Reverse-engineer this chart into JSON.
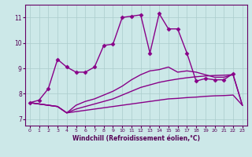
{
  "xlabel": "Windchill (Refroidissement éolien,°C)",
  "bg_color": "#cce8e8",
  "line_color": "#880088",
  "grid_color": "#aacccc",
  "xlim": [
    -0.5,
    23.5
  ],
  "ylim": [
    6.75,
    11.5
  ],
  "yticks": [
    7,
    8,
    9,
    10,
    11
  ],
  "xticks": [
    0,
    1,
    2,
    3,
    4,
    5,
    6,
    7,
    8,
    9,
    10,
    11,
    12,
    13,
    14,
    15,
    16,
    17,
    18,
    19,
    20,
    21,
    22,
    23
  ],
  "series": [
    {
      "x": [
        0,
        1,
        2,
        3,
        4,
        5,
        6,
        7,
        8,
        9,
        10,
        11,
        12,
        13,
        14,
        15,
        16,
        17,
        18,
        19,
        20,
        21,
        22
      ],
      "y": [
        7.65,
        7.75,
        8.2,
        9.35,
        9.05,
        8.85,
        8.85,
        9.05,
        9.9,
        9.95,
        11.0,
        11.05,
        11.1,
        9.6,
        11.15,
        10.55,
        10.55,
        9.6,
        8.5,
        8.6,
        8.55,
        8.55,
        8.8
      ],
      "marker": "D",
      "markersize": 2.5,
      "lw": 1.0
    },
    {
      "x": [
        0,
        3,
        4,
        5,
        6,
        7,
        8,
        9,
        10,
        11,
        12,
        13,
        14,
        15,
        16,
        17,
        18,
        19,
        20,
        21,
        22,
        23
      ],
      "y": [
        7.65,
        7.5,
        7.25,
        7.3,
        7.35,
        7.4,
        7.45,
        7.5,
        7.55,
        7.6,
        7.65,
        7.7,
        7.75,
        7.8,
        7.82,
        7.85,
        7.87,
        7.9,
        7.92,
        7.93,
        7.95,
        7.55
      ],
      "marker": null,
      "markersize": 0,
      "lw": 1.0
    },
    {
      "x": [
        0,
        3,
        4,
        5,
        6,
        7,
        8,
        9,
        10,
        11,
        12,
        13,
        14,
        15,
        16,
        17,
        18,
        19,
        20,
        21,
        22,
        23
      ],
      "y": [
        7.65,
        7.5,
        7.25,
        7.4,
        7.5,
        7.6,
        7.7,
        7.8,
        7.95,
        8.1,
        8.25,
        8.35,
        8.45,
        8.52,
        8.58,
        8.63,
        8.67,
        8.7,
        8.72,
        8.73,
        8.75,
        7.55
      ],
      "marker": null,
      "markersize": 0,
      "lw": 1.0
    },
    {
      "x": [
        0,
        3,
        4,
        5,
        6,
        7,
        8,
        9,
        10,
        11,
        12,
        13,
        14,
        15,
        16,
        17,
        18,
        19,
        20,
        21,
        22,
        23
      ],
      "y": [
        7.65,
        7.5,
        7.25,
        7.55,
        7.7,
        7.8,
        7.95,
        8.1,
        8.3,
        8.55,
        8.75,
        8.9,
        8.95,
        9.05,
        8.85,
        8.9,
        8.85,
        8.75,
        8.65,
        8.65,
        8.75,
        7.55
      ],
      "marker": null,
      "markersize": 0,
      "lw": 1.0
    }
  ]
}
